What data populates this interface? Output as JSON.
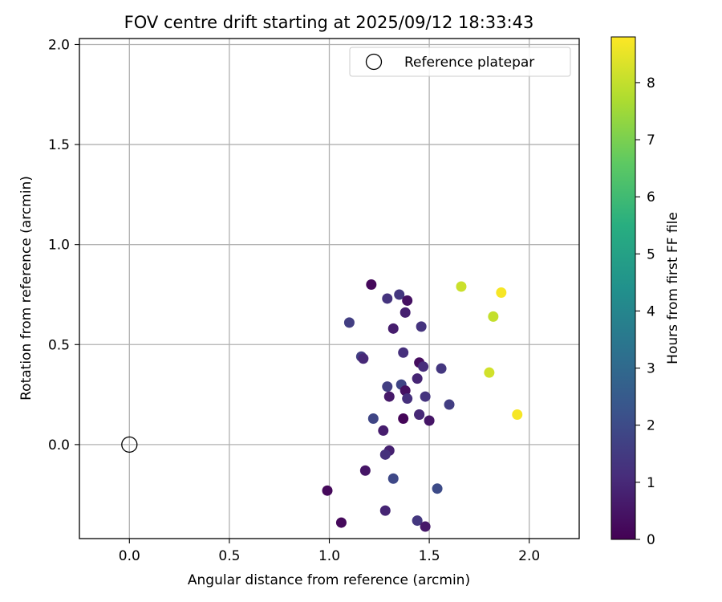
{
  "chart_data": {
    "type": "scatter",
    "title": "FOV centre drift starting at 2025/09/12 18:33:43",
    "xlabel": "Angular distance from reference (arcmin)",
    "ylabel": "Rotation from reference (arcmin)",
    "xlim": [
      -0.25,
      2.25
    ],
    "ylim": [
      -0.47,
      2.03
    ],
    "xticks": [
      0.0,
      0.5,
      1.0,
      1.5,
      2.0
    ],
    "xtick_labels": [
      "0.0",
      "0.5",
      "1.0",
      "1.5",
      "2.0"
    ],
    "yticks": [
      0.0,
      0.5,
      1.0,
      1.5,
      2.0
    ],
    "ytick_labels": [
      "0.0",
      "0.5",
      "1.0",
      "1.5",
      "2.0"
    ],
    "grid": true,
    "legend": {
      "placement": "upper-right",
      "entries": [
        "Reference platepar"
      ]
    },
    "reference_point": {
      "x": 0.0,
      "y": 0.0,
      "label": "Reference platepar"
    },
    "colorbar": {
      "label": "Hours from first FF file",
      "range": [
        0,
        8.8
      ],
      "ticks": [
        0,
        1,
        2,
        3,
        4,
        5,
        6,
        7,
        8
      ],
      "tick_labels": [
        "0",
        "1",
        "2",
        "3",
        "4",
        "5",
        "6",
        "7",
        "8"
      ],
      "colormap": "viridis"
    },
    "points": [
      {
        "x": 1.21,
        "y": 0.8,
        "c": 0.2
      },
      {
        "x": 1.35,
        "y": 0.75,
        "c": 1.4
      },
      {
        "x": 1.29,
        "y": 0.73,
        "c": 1.3
      },
      {
        "x": 1.39,
        "y": 0.72,
        "c": 0.4
      },
      {
        "x": 1.38,
        "y": 0.66,
        "c": 0.8
      },
      {
        "x": 1.1,
        "y": 0.61,
        "c": 1.6
      },
      {
        "x": 1.32,
        "y": 0.58,
        "c": 0.7
      },
      {
        "x": 1.46,
        "y": 0.59,
        "c": 1.3
      },
      {
        "x": 1.37,
        "y": 0.46,
        "c": 1.2
      },
      {
        "x": 1.16,
        "y": 0.44,
        "c": 1.6
      },
      {
        "x": 1.17,
        "y": 0.43,
        "c": 1.0
      },
      {
        "x": 1.45,
        "y": 0.41,
        "c": 0.3
      },
      {
        "x": 1.47,
        "y": 0.39,
        "c": 1.1
      },
      {
        "x": 1.56,
        "y": 0.38,
        "c": 1.4
      },
      {
        "x": 1.44,
        "y": 0.33,
        "c": 0.9
      },
      {
        "x": 1.29,
        "y": 0.29,
        "c": 1.6
      },
      {
        "x": 1.36,
        "y": 0.3,
        "c": 1.8
      },
      {
        "x": 1.38,
        "y": 0.27,
        "c": 0.4
      },
      {
        "x": 1.3,
        "y": 0.24,
        "c": 0.6
      },
      {
        "x": 1.39,
        "y": 0.23,
        "c": 1.2
      },
      {
        "x": 1.48,
        "y": 0.24,
        "c": 1.3
      },
      {
        "x": 1.6,
        "y": 0.2,
        "c": 1.6
      },
      {
        "x": 1.22,
        "y": 0.13,
        "c": 1.8
      },
      {
        "x": 1.37,
        "y": 0.13,
        "c": 0.1
      },
      {
        "x": 1.45,
        "y": 0.15,
        "c": 0.4
      },
      {
        "x": 1.45,
        "y": 0.15,
        "c": 1.0
      },
      {
        "x": 1.5,
        "y": 0.12,
        "c": 0.5
      },
      {
        "x": 1.27,
        "y": 0.07,
        "c": 0.7
      },
      {
        "x": 1.3,
        "y": -0.03,
        "c": 0.8
      },
      {
        "x": 1.28,
        "y": -0.05,
        "c": 1.2
      },
      {
        "x": 1.18,
        "y": -0.13,
        "c": 0.5
      },
      {
        "x": 1.32,
        "y": -0.17,
        "c": 1.9
      },
      {
        "x": 0.99,
        "y": -0.23,
        "c": 0.2
      },
      {
        "x": 1.54,
        "y": -0.22,
        "c": 2.0
      },
      {
        "x": 1.28,
        "y": -0.33,
        "c": 0.9
      },
      {
        "x": 1.44,
        "y": -0.38,
        "c": 1.4
      },
      {
        "x": 1.06,
        "y": -0.39,
        "c": 0.2
      },
      {
        "x": 1.48,
        "y": -0.41,
        "c": 0.6
      },
      {
        "x": 1.66,
        "y": 0.79,
        "c": 8.1
      },
      {
        "x": 1.86,
        "y": 0.76,
        "c": 8.7
      },
      {
        "x": 1.82,
        "y": 0.64,
        "c": 8.0
      },
      {
        "x": 1.8,
        "y": 0.36,
        "c": 8.2
      },
      {
        "x": 1.94,
        "y": 0.15,
        "c": 8.7
      }
    ]
  }
}
